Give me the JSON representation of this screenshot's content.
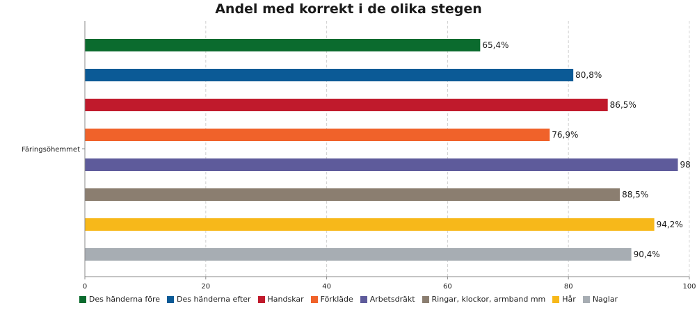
{
  "chart_data": {
    "type": "bar",
    "orientation": "horizontal",
    "title": "Andel med korrekt i de olika stegen",
    "categories": [
      "Färingsöhemmet"
    ],
    "series": [
      {
        "name": "Des händerna före",
        "values": [
          65.4
        ],
        "label": "65,4%",
        "color": "#0b6b2e"
      },
      {
        "name": "Des händerna efter",
        "values": [
          80.8
        ],
        "label": "80,8%",
        "color": "#0b5a96"
      },
      {
        "name": "Handskar",
        "values": [
          86.5
        ],
        "label": "86,5%",
        "color": "#c01a2c"
      },
      {
        "name": "Förkläde",
        "values": [
          76.9
        ],
        "label": "76,9%",
        "color": "#f0622a"
      },
      {
        "name": "Arbetsdräkt",
        "values": [
          98.1
        ],
        "label": "98",
        "color": "#5e5b9b"
      },
      {
        "name": "Ringar, klockor, armband mm",
        "values": [
          88.5
        ],
        "label": "88,5%",
        "color": "#8b7e70"
      },
      {
        "name": "Hår",
        "values": [
          94.2
        ],
        "label": "94,2%",
        "color": "#f7b81a"
      },
      {
        "name": "Naglar",
        "values": [
          90.4
        ],
        "label": "90,4%",
        "color": "#a7adb3"
      }
    ],
    "xlim": [
      0,
      100
    ],
    "xticks": [
      "0",
      "20",
      "40",
      "60",
      "80",
      "100"
    ],
    "grid": true,
    "legend": "bottom"
  }
}
